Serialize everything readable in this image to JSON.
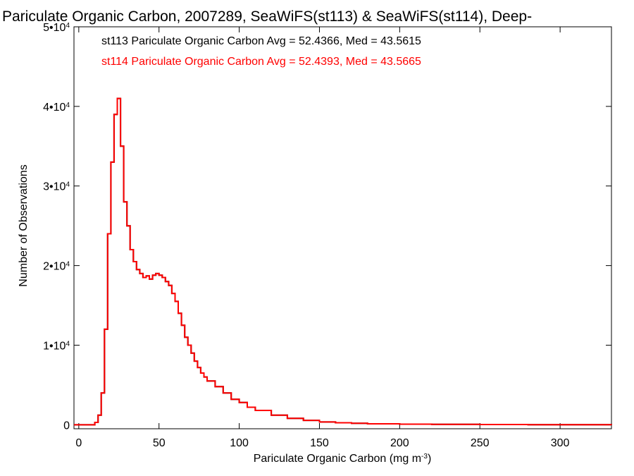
{
  "chart_data": {
    "type": "line",
    "title": "Pariculate Organic Carbon, 2007289, SeaWiFS(st113) & SeaWiFS(st114), Deep-",
    "xlabel": "Pariculate Organic Carbon (mg m",
    "xlabel_sup": "-3",
    "xlabel_end": ")",
    "ylabel": "Number of Observations",
    "xlim": [
      -3,
      332
    ],
    "ylim": [
      -500,
      50000
    ],
    "xticks": [
      0,
      50,
      100,
      150,
      200,
      250,
      300
    ],
    "yticks": [
      {
        "value": 0,
        "label": "0",
        "exp": ""
      },
      {
        "value": 10000,
        "label": "1•10",
        "exp": "4"
      },
      {
        "value": 20000,
        "label": "2•10",
        "exp": "4"
      },
      {
        "value": 30000,
        "label": "3•10",
        "exp": "4"
      },
      {
        "value": 40000,
        "label": "4•10",
        "exp": "4"
      },
      {
        "value": 50000,
        "label": "5•10",
        "exp": "4"
      }
    ],
    "series": [
      {
        "name": "st113",
        "color": "#000000",
        "stats_text": "st113 Pariculate Organic Carbon Avg = 52.4366, Med = 43.5615",
        "x": [
          -3,
          8,
          10,
          12,
          14,
          16,
          18,
          20,
          22,
          24,
          26,
          28,
          30,
          32,
          34,
          36,
          38,
          40,
          42,
          44,
          46,
          48,
          50,
          52,
          54,
          56,
          58,
          60,
          62,
          64,
          66,
          68,
          70,
          72,
          74,
          76,
          78,
          80,
          85,
          90,
          95,
          100,
          105,
          110,
          120,
          130,
          140,
          150,
          160,
          170,
          180,
          200,
          220,
          250,
          280,
          332
        ],
        "y": [
          0,
          0,
          300,
          1200,
          4000,
          12000,
          24000,
          33000,
          39000,
          41000,
          35000,
          28000,
          25000,
          22000,
          20500,
          19500,
          19000,
          18500,
          18700,
          18300,
          18800,
          19000,
          18800,
          18500,
          18000,
          17500,
          16500,
          15500,
          14000,
          12500,
          11000,
          10000,
          9000,
          8000,
          7200,
          6500,
          6000,
          5500,
          4800,
          4000,
          3200,
          2800,
          2200,
          1800,
          1200,
          800,
          550,
          350,
          250,
          180,
          120,
          80,
          50,
          30,
          15,
          0
        ]
      },
      {
        "name": "st114",
        "color": "#ff0000",
        "stats_text": "st114 Pariculate Organic Carbon Avg = 52.4393, Med = 43.5665",
        "x": [
          -3,
          8,
          10,
          12,
          14,
          16,
          18,
          20,
          22,
          24,
          26,
          28,
          30,
          32,
          34,
          36,
          38,
          40,
          42,
          44,
          46,
          48,
          50,
          52,
          54,
          56,
          58,
          60,
          62,
          64,
          66,
          68,
          70,
          72,
          74,
          76,
          78,
          80,
          85,
          90,
          95,
          100,
          105,
          110,
          120,
          130,
          140,
          150,
          160,
          170,
          180,
          200,
          220,
          250,
          280,
          332
        ],
        "y": [
          0,
          0,
          300,
          1200,
          4000,
          12000,
          24000,
          33000,
          39000,
          41000,
          35000,
          28000,
          25000,
          22000,
          20500,
          19500,
          19000,
          18500,
          18700,
          18300,
          18800,
          19000,
          18800,
          18500,
          18000,
          17500,
          16500,
          15500,
          14000,
          12500,
          11000,
          10000,
          9000,
          8000,
          7200,
          6500,
          6000,
          5500,
          4800,
          4000,
          3200,
          2800,
          2200,
          1800,
          1200,
          800,
          550,
          350,
          250,
          180,
          120,
          80,
          50,
          30,
          15,
          0
        ]
      }
    ],
    "grid": false
  }
}
